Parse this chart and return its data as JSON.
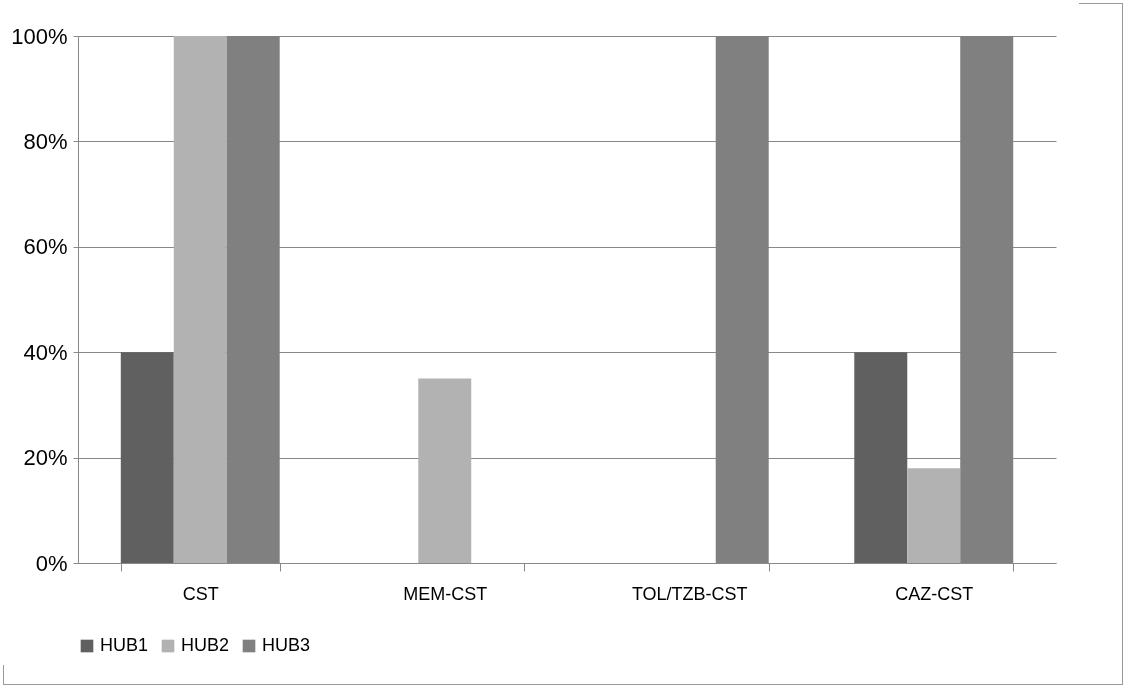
{
  "chart_data": {
    "type": "bar",
    "categories": [
      "CST",
      "MEM-CST",
      "TOL/TZB-CST",
      "CAZ-CST"
    ],
    "series": [
      {
        "name": "HUB1",
        "color": "#606060",
        "values": [
          40,
          0,
          0,
          40
        ]
      },
      {
        "name": "HUB2",
        "color": "#b2b2b2",
        "values": [
          100,
          35,
          0,
          18
        ]
      },
      {
        "name": "HUB3",
        "color": "#808080",
        "values": [
          100,
          0,
          100,
          100
        ]
      }
    ],
    "ylim": [
      0,
      100
    ],
    "yticks": [
      {
        "value": 0,
        "label": "0%"
      },
      {
        "value": 20,
        "label": "20%"
      },
      {
        "value": 40,
        "label": "40%"
      },
      {
        "value": 60,
        "label": "60%"
      },
      {
        "value": 80,
        "label": "80%"
      },
      {
        "value": 100,
        "label": "100%"
      }
    ],
    "grid": "y",
    "legend": "bottom"
  }
}
